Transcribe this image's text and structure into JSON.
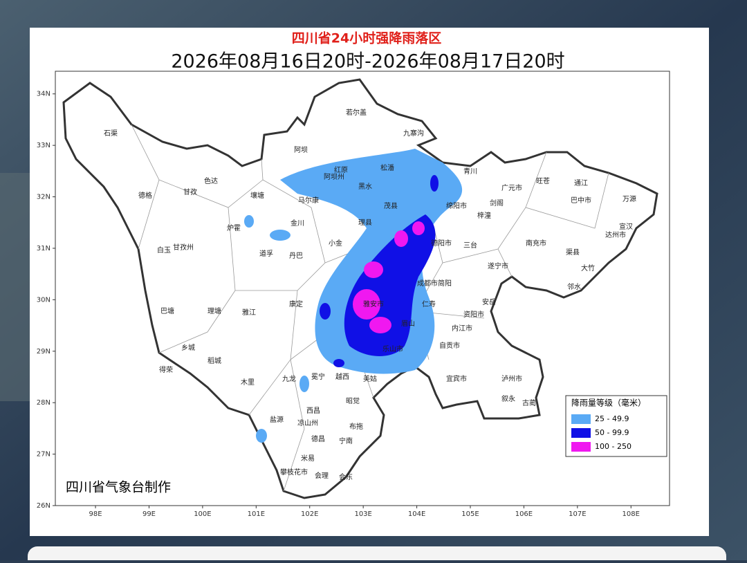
{
  "header": {
    "title": "四川省24小时强降雨落区",
    "subtitle": "2026年08月16日20时-2026年08月17日20时"
  },
  "map": {
    "xlim": [
      97.25,
      108.72
    ],
    "ylim": [
      26,
      34.44
    ],
    "lat_ticks": [
      {
        "value": 34,
        "label": "34N"
      },
      {
        "value": 33,
        "label": "33N"
      },
      {
        "value": 32,
        "label": "32N"
      },
      {
        "value": 31,
        "label": "31N"
      },
      {
        "value": 30,
        "label": "30N"
      },
      {
        "value": 29,
        "label": "29N"
      },
      {
        "value": 28,
        "label": "28N"
      },
      {
        "value": 27,
        "label": "27N"
      },
      {
        "value": 26,
        "label": "26N"
      }
    ],
    "lon_ticks": [
      {
        "value": 98,
        "label": "98E"
      },
      {
        "value": 99,
        "label": "99E"
      },
      {
        "value": 100,
        "label": "100E"
      },
      {
        "value": 101,
        "label": "101E"
      },
      {
        "value": 102,
        "label": "102E"
      },
      {
        "value": 103,
        "label": "103E"
      },
      {
        "value": 104,
        "label": "104E"
      },
      {
        "value": 105,
        "label": "105E"
      },
      {
        "value": 106,
        "label": "106E"
      },
      {
        "value": 107,
        "label": "107E"
      },
      {
        "value": 108,
        "label": "108E"
      }
    ],
    "places": [
      "石渠",
      "德格",
      "甘孜",
      "色达",
      "白玉",
      "甘孜州",
      "巴塘",
      "理塘",
      "乡城",
      "稻城",
      "得荣",
      "雅江",
      "康定",
      "九龙",
      "木里",
      "若尔盖",
      "阿坝",
      "红原",
      "阿坝州",
      "松潘",
      "九寨沟",
      "壤塘",
      "马尔康",
      "黑水",
      "金川",
      "小金",
      "理县",
      "茂县",
      "道孚",
      "丹巴",
      "炉霍",
      "青川",
      "广元市",
      "旺苍",
      "通江",
      "巴中市",
      "万源",
      "宣汉",
      "达州市",
      "南充市",
      "绵阳市",
      "梓潼",
      "剑阁",
      "德阳市",
      "三台",
      "成都市",
      "遂宁市",
      "资阳市",
      "内江市",
      "乐山市",
      "宜宾市",
      "泸州市",
      "自贡市",
      "雅安市",
      "眉山",
      "西昌",
      "凉山州",
      "德昌",
      "会理",
      "会东",
      "攀枝花市",
      "米易",
      "盐源",
      "冕宁",
      "越西",
      "美姑",
      "昭觉",
      "布拖",
      "宁南",
      "古蔺",
      "叙永",
      "简阳",
      "仁寿",
      "安岳",
      "渠县",
      "大竹",
      "邻水"
    ],
    "legend": {
      "title": "降雨量等级（毫米）",
      "items": [
        {
          "label": "25 - 49.9",
          "color": "#5aaaf5"
        },
        {
          "label": "50 - 99.9",
          "color": "#1010e6"
        },
        {
          "label": "100 - 250",
          "color": "#f018f0"
        }
      ]
    },
    "credit": "四川省气象台制作"
  }
}
